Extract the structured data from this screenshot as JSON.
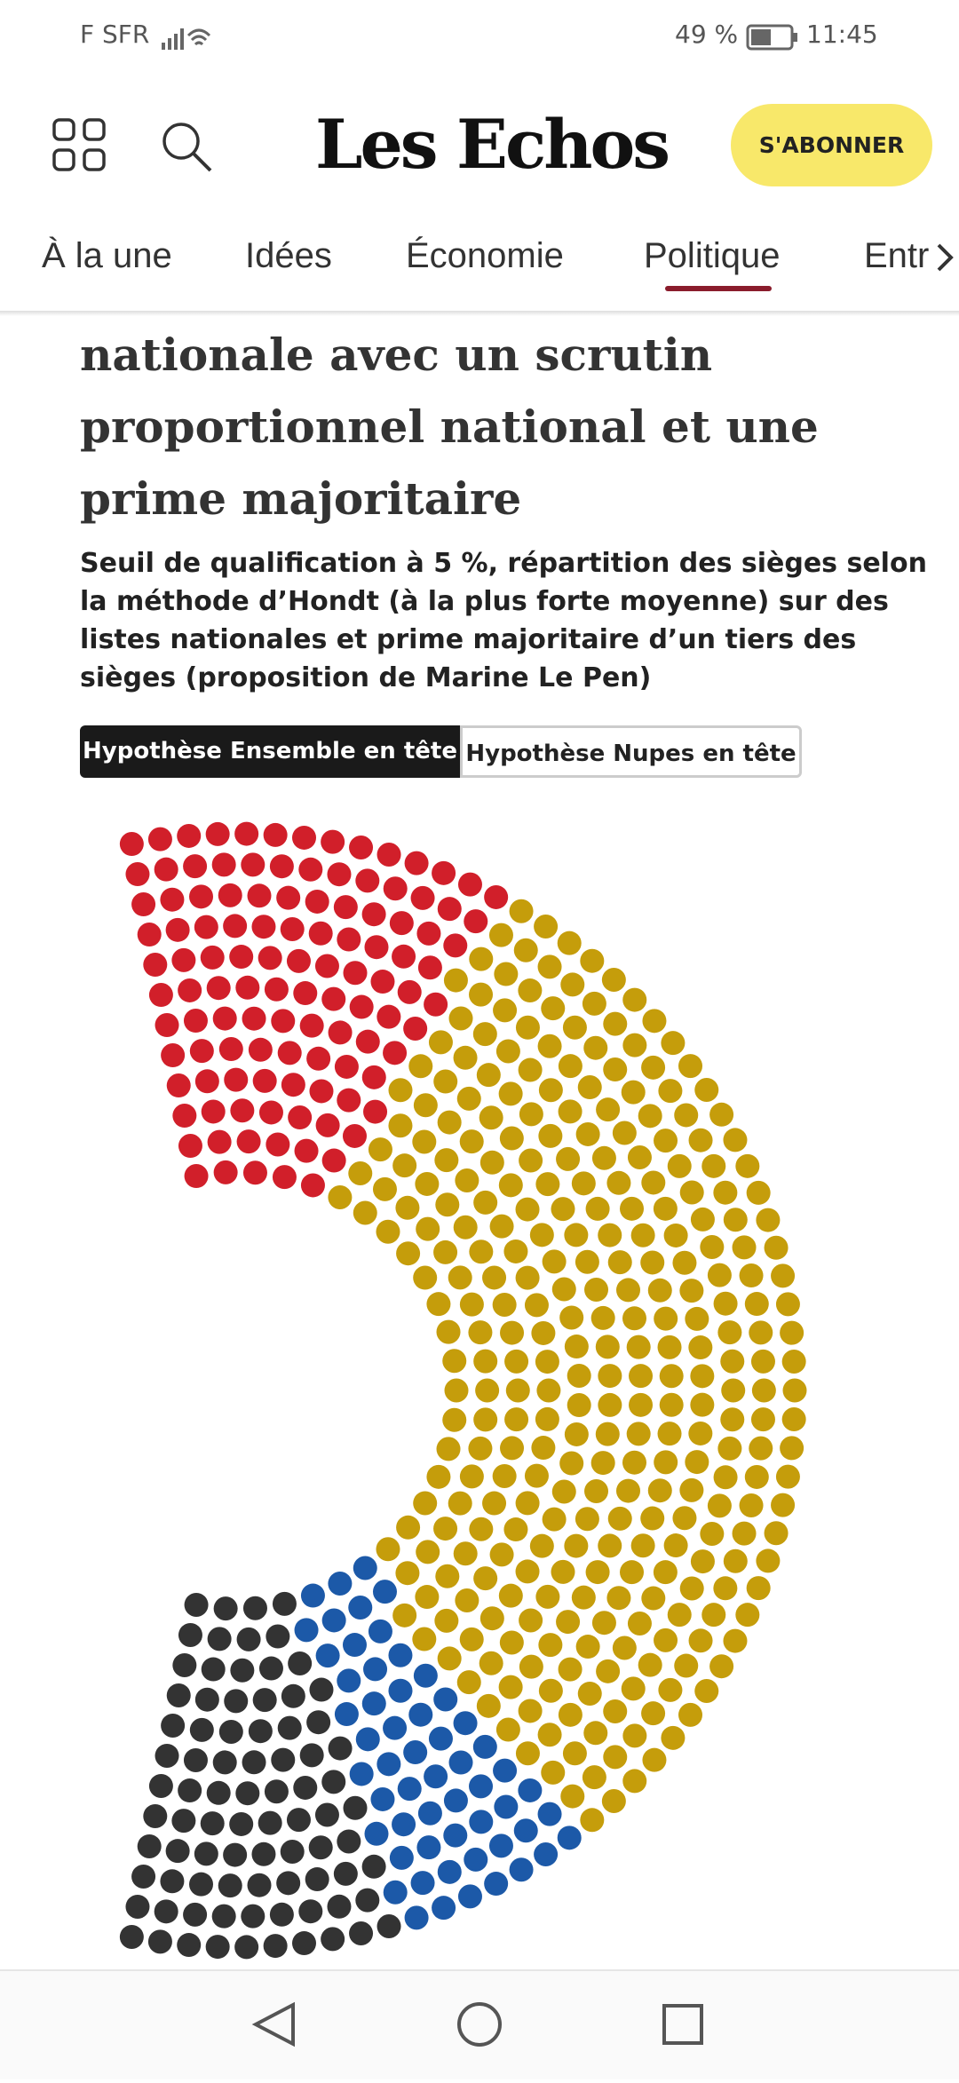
{
  "status_bar": {
    "carrier": "F SFR",
    "battery": "49 %",
    "time": "11:45"
  },
  "header": {
    "logo": "Les Echos",
    "subscribe": "S'ABONNER"
  },
  "nav": {
    "items": [
      "À la une",
      "Idées",
      "Économie",
      "Politique",
      "Entr"
    ],
    "active": 3
  },
  "article": {
    "title_lines": [
      "nationale avec un scrutin",
      "proportionnel national et une",
      "prime majoritaire"
    ],
    "subtitle_lines": [
      "Seuil de qualification à 5 %, répartition des sièges selon",
      "la méthode d’Hondt (à la plus forte moyenne) sur des",
      "listes nationales et prime majoritaire d’un tiers des",
      "sièges (proposition de Marine Le Pen)"
    ],
    "toggles": [
      "Hypothèse Ensemble en tête",
      "Hypothèse Nupes en tête"
    ],
    "active_toggle": 0
  },
  "chart_data": {
    "type": "parliament",
    "values": [
      114,
      323,
      57,
      83
    ],
    "colors": [
      "#d11f2a",
      "#c59d0b",
      "#1c59a8",
      "#333333"
    ]
  }
}
